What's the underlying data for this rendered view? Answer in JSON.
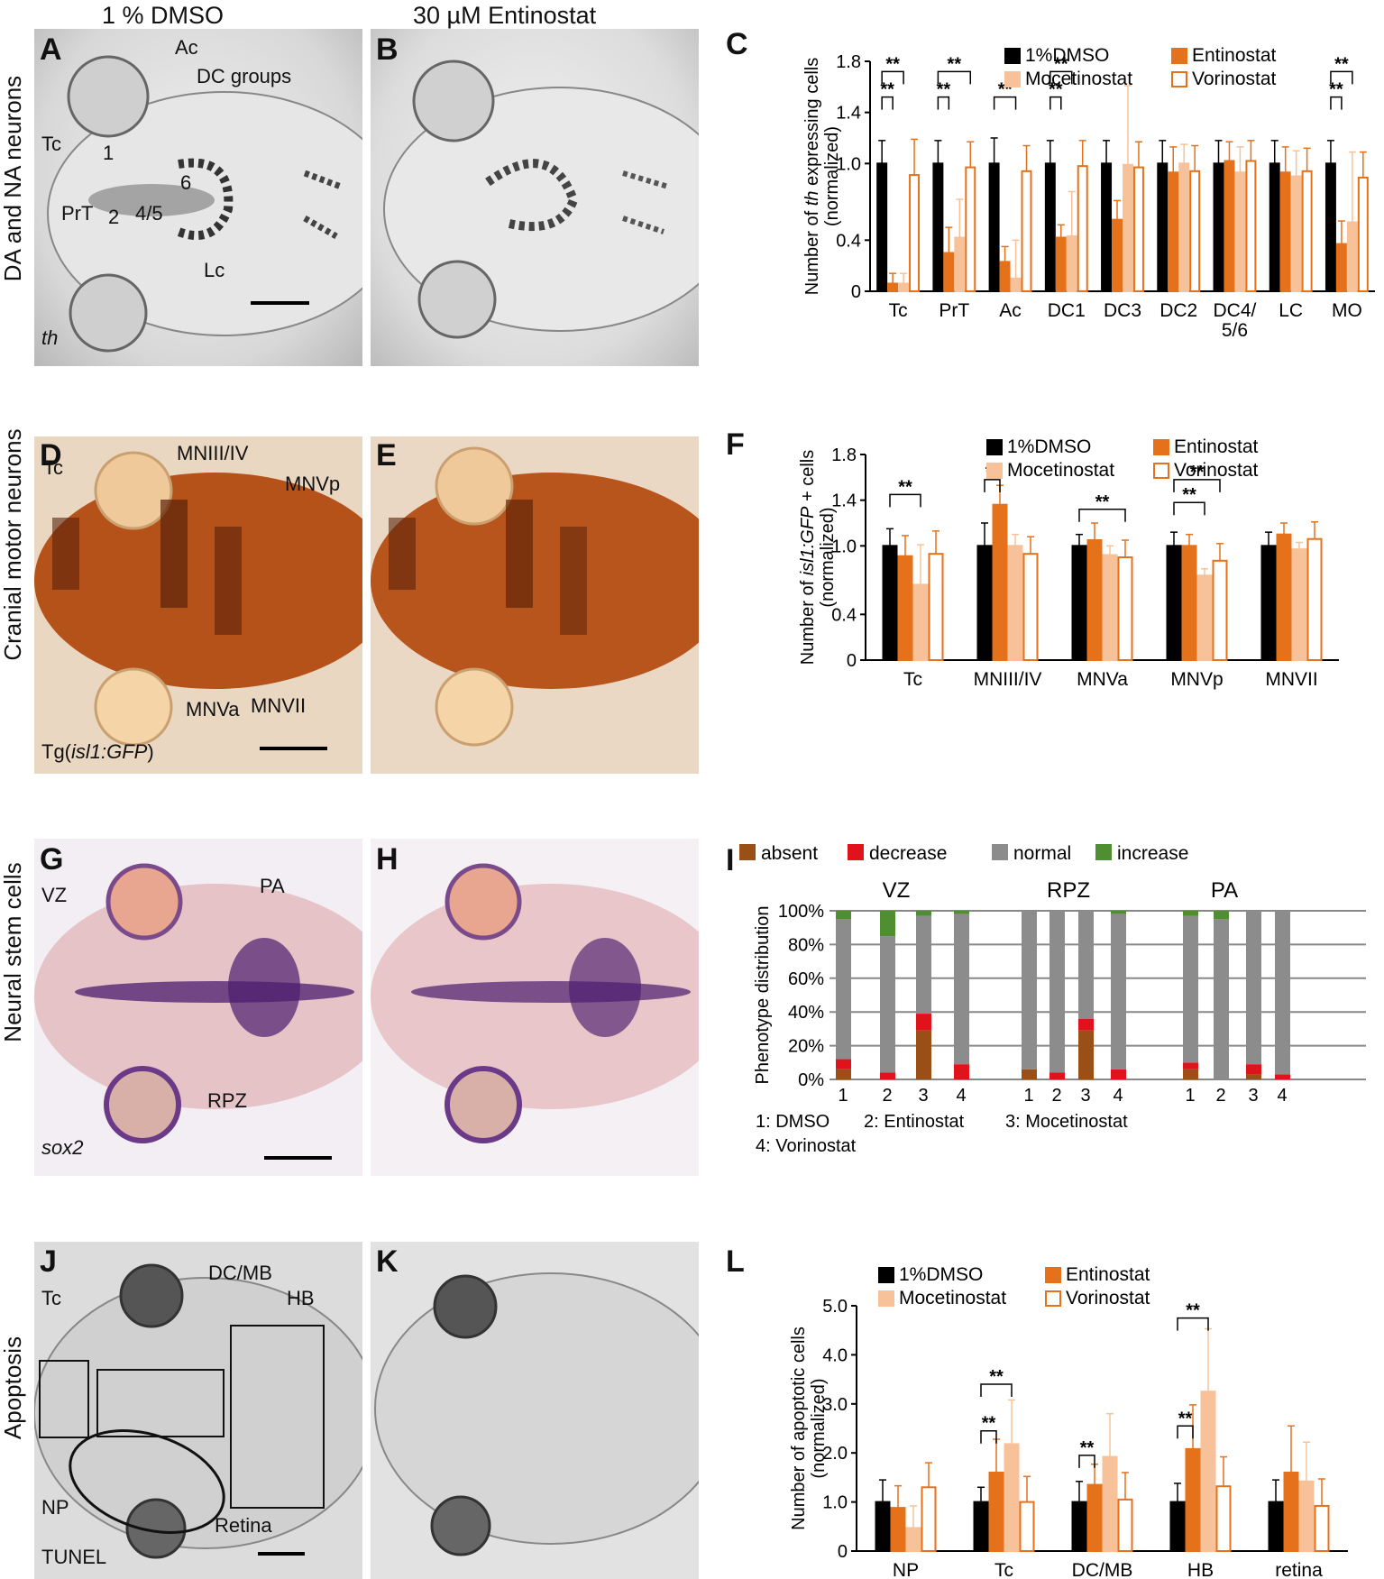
{
  "columns": [
    "1 % DMSO",
    "30 µM Entinostat"
  ],
  "rows": [
    "DA and NA neurons",
    "Cranial motor neurons",
    "Neural stem cells",
    "Apoptosis"
  ],
  "panel_letters": [
    "A",
    "B",
    "C",
    "D",
    "E",
    "F",
    "G",
    "H",
    "I",
    "J",
    "K",
    "L"
  ],
  "colors": {
    "dmso": "#000000",
    "entinostat": "#e5711a",
    "mocetinostat": "#f7c299",
    "vorinostat": "#ffffff",
    "vorinostat_edge": "#e5711a",
    "absent": "#9a4f16",
    "decrease": "#e0121b",
    "normal": "#8c8c8c",
    "increase": "#4f8f32"
  },
  "annotations": {
    "A": {
      "ac": "Ac",
      "dc_groups": "DC groups",
      "tc": "Tc",
      "n1": "1",
      "n6": "6",
      "prt": "PrT",
      "n2": "2",
      "n45": "4/5",
      "lc": "Lc",
      "probe": "th"
    },
    "D": {
      "tc": "Tc",
      "mn3": "MNIII/IV",
      "mn5p": "MNVp",
      "mn5a": "MNVa",
      "mn7": "MNVII",
      "probe_pre": "Tg(",
      "probe_it": "isl1:GFP",
      "probe_post": ")"
    },
    "G": {
      "vz": "VZ",
      "pa": "PA",
      "rpz": "RPZ",
      "probe": "sox2"
    },
    "J": {
      "tc": "Tc",
      "dcmb": "DC/MB",
      "hb": "HB",
      "np": "NP",
      "retina": "Retina",
      "probe": "TUNEL"
    }
  },
  "chart_data": [
    {
      "panel": "C",
      "type": "bar",
      "ylabel_pre": "Number of ",
      "ylabel_it": "th",
      "ylabel_post": " expressing cells",
      "ylabel2": "(normalized)",
      "ylim": [
        0,
        1.8
      ],
      "yticks": [
        "0",
        "0.4",
        "1.0",
        "1.4",
        "1.8"
      ],
      "ytick_values": [
        0,
        0.4,
        1.0,
        1.4,
        1.8
      ],
      "categories": [
        "Tc",
        "PrT",
        "Ac",
        "DC1",
        "DC3",
        "DC2",
        "DC4/\n5/6",
        "LC",
        "MO"
      ],
      "legend": [
        "1%DMSO",
        "Entinostat",
        "Mocetinostat",
        "Vorinostat"
      ],
      "series": [
        {
          "name": "1%DMSO",
          "values": [
            1.0,
            1.0,
            1.0,
            1.0,
            1.0,
            1.0,
            1.0,
            1.0,
            1.0
          ],
          "err": [
            0.18,
            0.18,
            0.2,
            0.18,
            0.18,
            0.18,
            0.18,
            0.18,
            0.18
          ]
        },
        {
          "name": "Entinostat",
          "values": [
            0.06,
            0.3,
            0.23,
            0.42,
            0.56,
            0.93,
            1.02,
            0.93,
            0.37
          ],
          "err": [
            0.08,
            0.2,
            0.12,
            0.1,
            0.15,
            0.2,
            0.15,
            0.2,
            0.18
          ]
        },
        {
          "name": "Mocetinostat",
          "values": [
            0.06,
            0.42,
            0.1,
            0.43,
            0.99,
            1.0,
            0.93,
            0.9,
            0.54
          ],
          "err": [
            0.08,
            0.3,
            0.3,
            0.35,
            0.62,
            0.15,
            0.2,
            0.2,
            0.55
          ]
        },
        {
          "name": "Vorinostat",
          "values": [
            0.91,
            0.97,
            0.94,
            0.98,
            0.97,
            0.94,
            1.02,
            0.94,
            0.89
          ],
          "err": [
            0.28,
            0.2,
            0.2,
            0.2,
            0.2,
            0.2,
            0.16,
            0.18,
            0.2
          ]
        }
      ],
      "significance": [
        {
          "label": "**",
          "cat": 0,
          "to": 2,
          "level": 1.72
        },
        {
          "label": "**",
          "cat": 0,
          "to": 1,
          "level": 1.52
        },
        {
          "label": "**",
          "cat": 1,
          "to": 3,
          "level": 1.72
        },
        {
          "label": "**",
          "cat": 1,
          "to": 1,
          "level": 1.52
        },
        {
          "label": "**",
          "cat": 2,
          "to": 2,
          "level": 1.52
        },
        {
          "label": "**",
          "cat": 3,
          "to": 2,
          "level": 1.72
        },
        {
          "label": "**",
          "cat": 3,
          "to": 1,
          "level": 1.52
        },
        {
          "label": "**",
          "cat": 8,
          "to": 2,
          "level": 1.72
        },
        {
          "label": "**",
          "cat": 8,
          "to": 1,
          "level": 1.52
        }
      ]
    },
    {
      "panel": "F",
      "type": "bar",
      "ylabel_pre": "Number of ",
      "ylabel_it": "isl1:GFP",
      "ylabel_post": " + cells",
      "ylabel2": "(normalized)",
      "ylim": [
        0,
        1.8
      ],
      "yticks": [
        "0",
        "0.4",
        "1.0",
        "1.4",
        "1.8"
      ],
      "ytick_values": [
        0,
        0.4,
        1.0,
        1.4,
        1.8
      ],
      "categories": [
        "Tc",
        "MNIII/IV",
        "MNVa",
        "MNVp",
        "MNVII"
      ],
      "legend": [
        "1%DMSO",
        "Entinostat",
        "Mocetinostat",
        "Vorinostat"
      ],
      "series": [
        {
          "name": "1%DMSO",
          "values": [
            1.0,
            1.0,
            1.0,
            1.0,
            1.0
          ],
          "err": [
            0.15,
            0.2,
            0.1,
            0.12,
            0.12
          ]
        },
        {
          "name": "Entinostat",
          "values": [
            0.91,
            1.36,
            1.05,
            1.0,
            1.1
          ],
          "err": [
            0.18,
            0.17,
            0.15,
            0.1,
            0.1
          ]
        },
        {
          "name": "Mocetinostat",
          "values": [
            0.66,
            1.0,
            0.92,
            0.74,
            0.97
          ],
          "err": [
            0.35,
            0.1,
            0.08,
            0.06,
            0.06
          ]
        },
        {
          "name": "Vorinostat",
          "values": [
            0.93,
            0.93,
            0.9,
            0.87,
            1.06
          ],
          "err": [
            0.2,
            0.15,
            0.15,
            0.15,
            0.15
          ]
        }
      ],
      "significance": [
        {
          "label": "**",
          "cat": 0,
          "to": 2,
          "level": 1.45
        },
        {
          "label": "**",
          "cat": 1,
          "to": 1,
          "level": 1.58
        },
        {
          "label": "**",
          "cat": 2,
          "to": 3,
          "level": 1.32
        },
        {
          "label": "**",
          "cat": 3,
          "to": 3,
          "level": 1.58
        },
        {
          "label": "**",
          "cat": 3,
          "to": 2,
          "level": 1.38
        }
      ]
    },
    {
      "panel": "I",
      "type": "bar",
      "ylabel": "Phenotype distribution",
      "yticks": [
        "0%",
        "20%",
        "40%",
        "60%",
        "80%",
        "100%"
      ],
      "ytick_values": [
        0,
        20,
        40,
        60,
        80,
        100
      ],
      "legend": [
        "absent",
        "decrease",
        "normal",
        "increase"
      ],
      "groups": [
        "VZ",
        "RPZ",
        "PA"
      ],
      "bar_labels": [
        "1",
        "2",
        "3",
        "4"
      ],
      "key": [
        "1: DMSO",
        "2: Entinostat",
        "3: Mocetinostat",
        "4: Vorinostat"
      ],
      "stacks": [
        [
          [
            6,
            6,
            83,
            5
          ],
          [
            0,
            4,
            81,
            15
          ],
          [
            29,
            10,
            58,
            3
          ],
          [
            0,
            9,
            89,
            2
          ]
        ],
        [
          [
            6,
            0,
            94,
            0
          ],
          [
            0,
            4,
            96,
            0
          ],
          [
            29,
            7,
            64,
            0
          ],
          [
            0,
            6,
            92,
            2
          ]
        ],
        [
          [
            6,
            4,
            87,
            3
          ],
          [
            0,
            0,
            95,
            5
          ],
          [
            3,
            6,
            91,
            0
          ],
          [
            0,
            3,
            97,
            0
          ]
        ]
      ]
    },
    {
      "panel": "L",
      "type": "bar",
      "ylabel": "Number of apoptotic cells",
      "ylabel2": "(normalized)",
      "ylim": [
        0,
        5.0
      ],
      "yticks": [
        "0",
        "1.0",
        "2.0",
        "3.0",
        "4.0",
        "5.0"
      ],
      "ytick_values": [
        0,
        1,
        2,
        3,
        4,
        5
      ],
      "categories": [
        "NP",
        "Tc",
        "DC/MB",
        "HB",
        "retina"
      ],
      "legend": [
        "1%DMSO",
        "Entinostat",
        "Mocetinostat",
        "Vorinostat"
      ],
      "series": [
        {
          "name": "1%DMSO",
          "values": [
            1.0,
            1.0,
            1.0,
            1.0,
            1.0
          ],
          "err": [
            0.45,
            0.3,
            0.42,
            0.38,
            0.45
          ]
        },
        {
          "name": "Entinostat",
          "values": [
            0.88,
            1.6,
            1.35,
            2.08,
            1.6
          ],
          "err": [
            0.45,
            0.68,
            0.42,
            0.9,
            0.95
          ]
        },
        {
          "name": "Mocetinostat",
          "values": [
            0.47,
            2.18,
            1.92,
            3.25,
            1.42
          ],
          "err": [
            0.45,
            0.9,
            0.88,
            1.28,
            0.8
          ]
        },
        {
          "name": "Vorinostat",
          "values": [
            1.3,
            1.0,
            1.05,
            1.32,
            0.92
          ],
          "err": [
            0.5,
            0.52,
            0.55,
            0.6,
            0.55
          ]
        }
      ],
      "significance": [
        {
          "label": "**",
          "cat": 1,
          "to": 2,
          "level": 3.4
        },
        {
          "label": "**",
          "cat": 1,
          "to": 1,
          "level": 2.45
        },
        {
          "label": "**",
          "cat": 2,
          "to": 1,
          "level": 1.95
        },
        {
          "label": "**",
          "cat": 3,
          "to": 2,
          "level": 4.75
        },
        {
          "label": "**",
          "cat": 3,
          "to": 1,
          "level": 2.55
        }
      ]
    }
  ]
}
